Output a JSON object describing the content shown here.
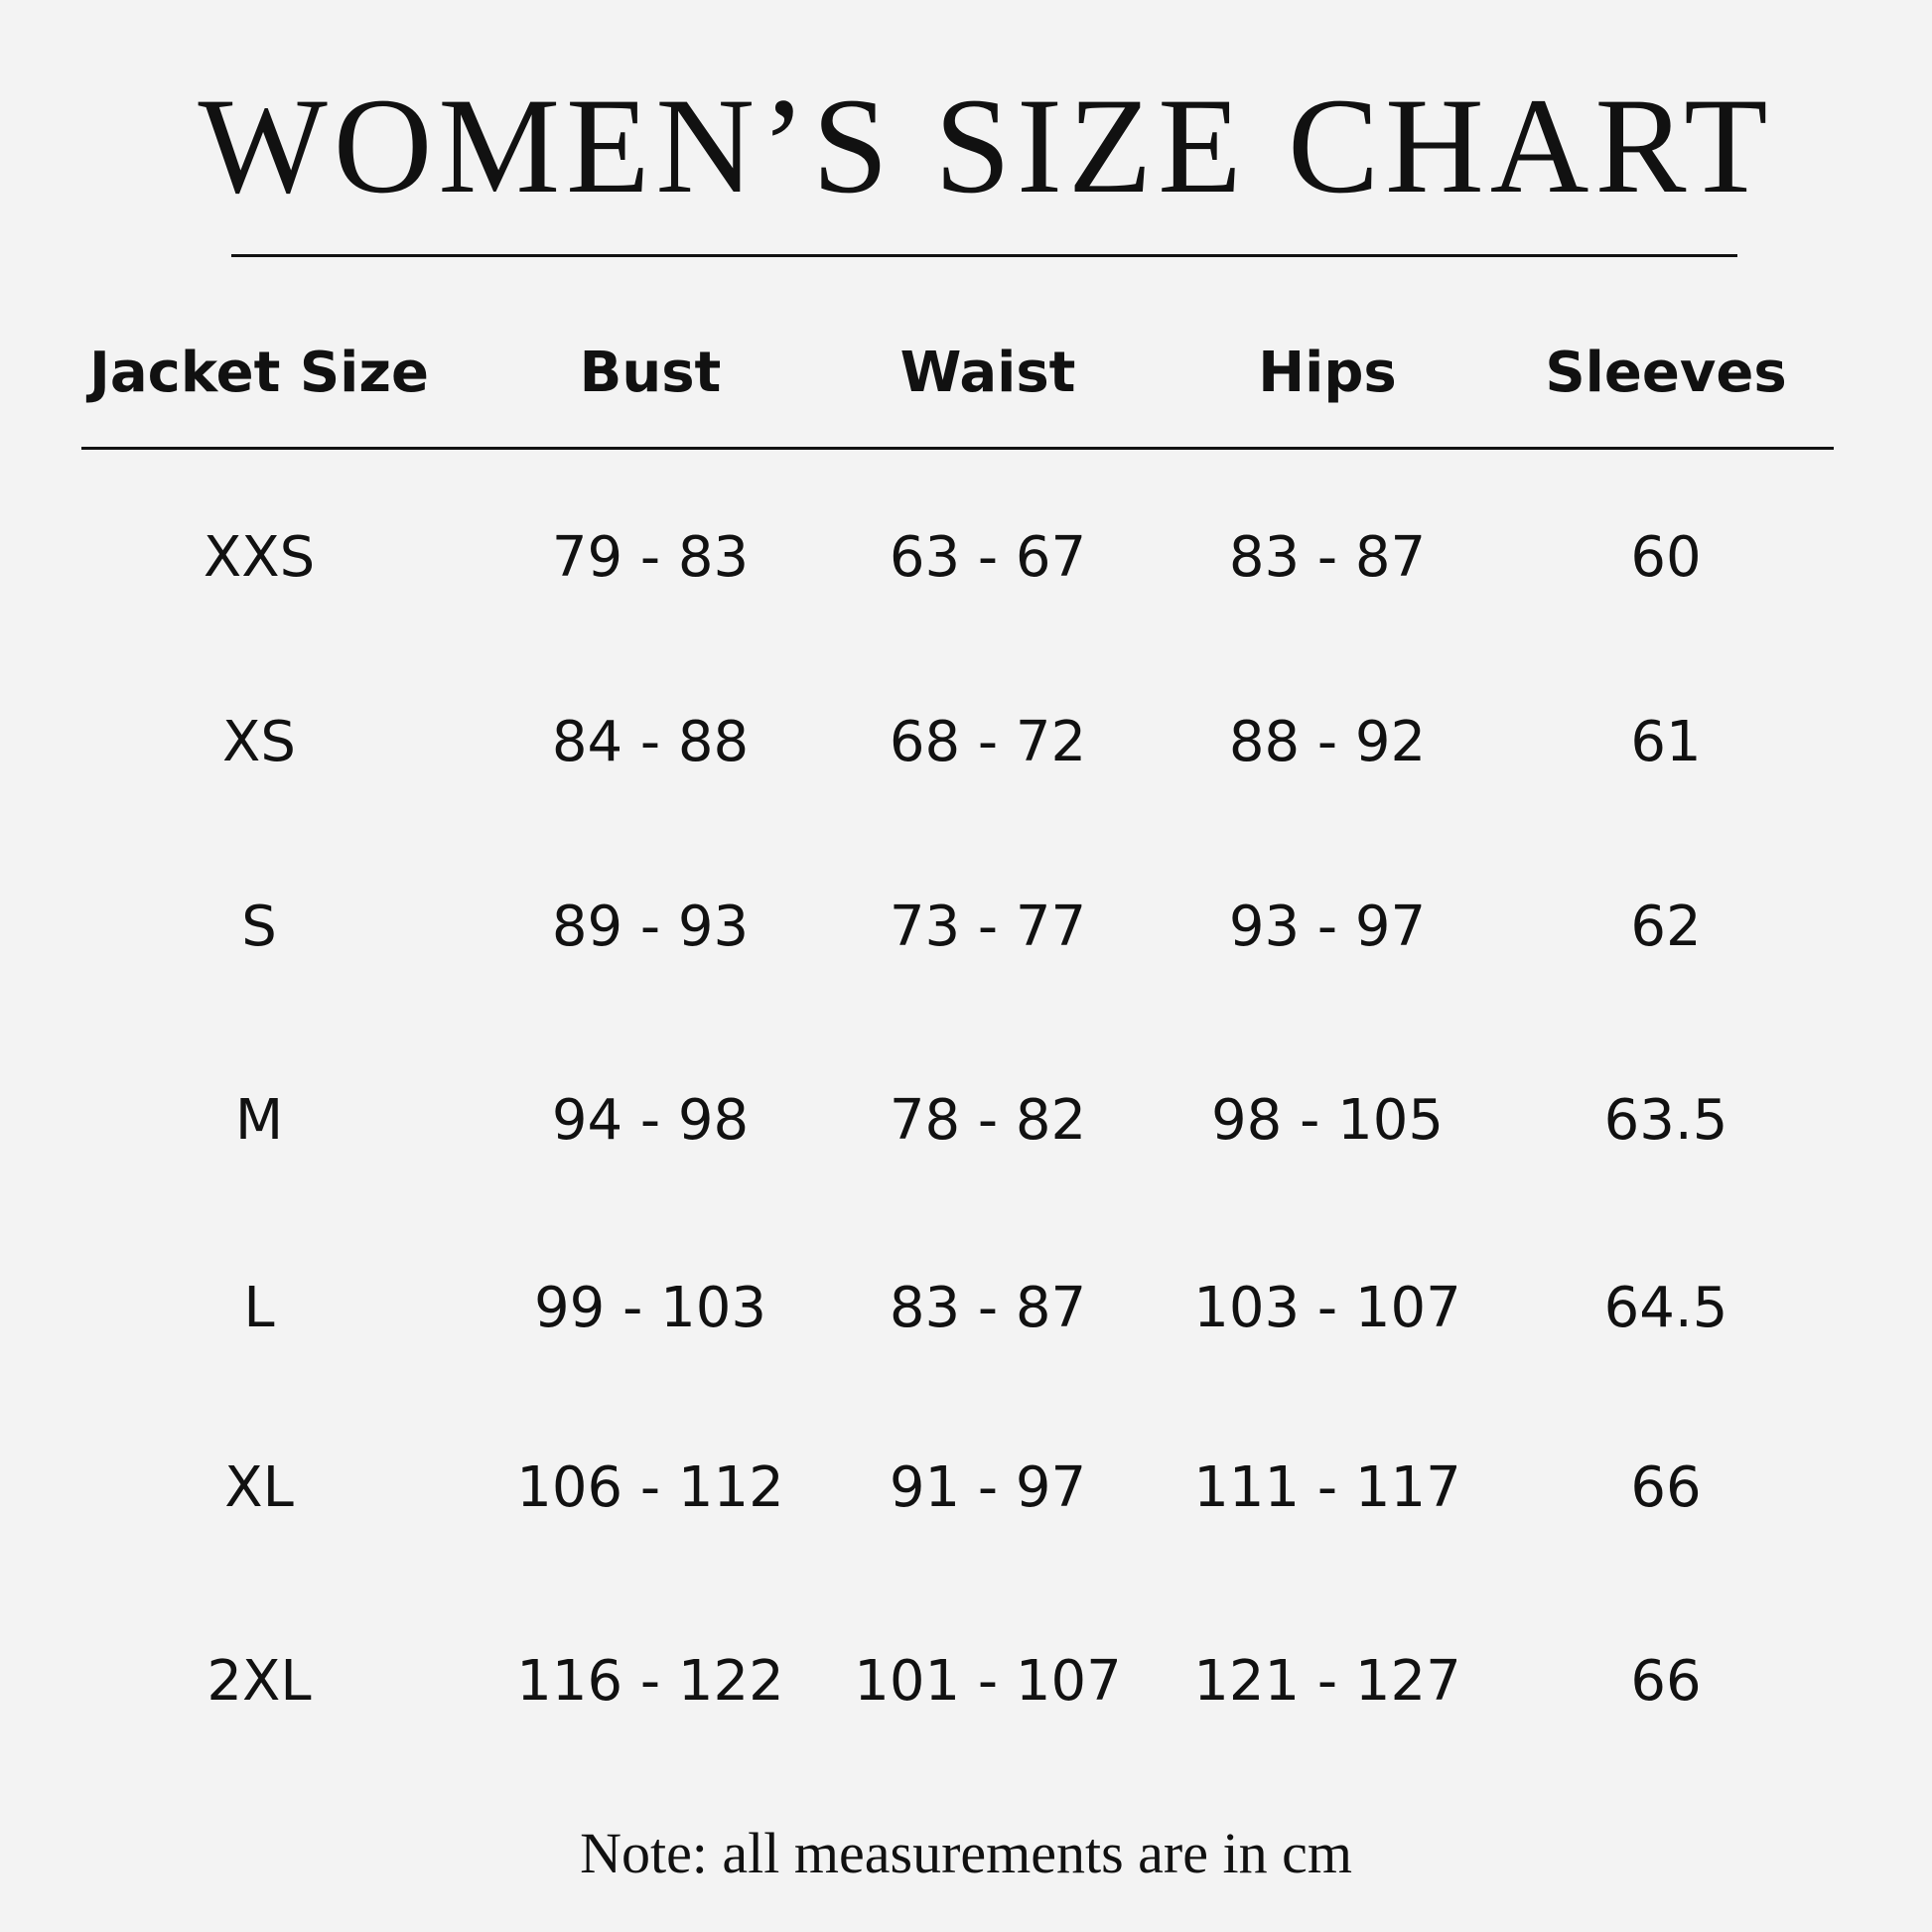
{
  "title": "WOMEN’S SIZE CHART",
  "headers": [
    "Jacket Size",
    "Bust",
    "Waist",
    "Hips",
    "Sleeves"
  ],
  "rows": [
    [
      "XXS",
      "79 - 83",
      "63 - 67",
      "83 - 87",
      "60"
    ],
    [
      "XS",
      "84 - 88",
      "68 - 72",
      "88 - 92",
      "61"
    ],
    [
      "S",
      "89 - 93",
      "73 - 77",
      "93 - 97",
      "62"
    ],
    [
      "M",
      "94 - 98",
      "78 - 82",
      "98 - 105",
      "63.5"
    ],
    [
      "L",
      "99 - 103",
      "83 - 87",
      "103 - 107",
      "64.5"
    ],
    [
      "XL",
      "106 - 112",
      "91 - 97",
      "111 - 117",
      "66"
    ],
    [
      "2XL",
      "116 - 122",
      "101 - 107",
      "121 - 127",
      "66"
    ]
  ],
  "note": "Note: all measurements are in cm"
}
